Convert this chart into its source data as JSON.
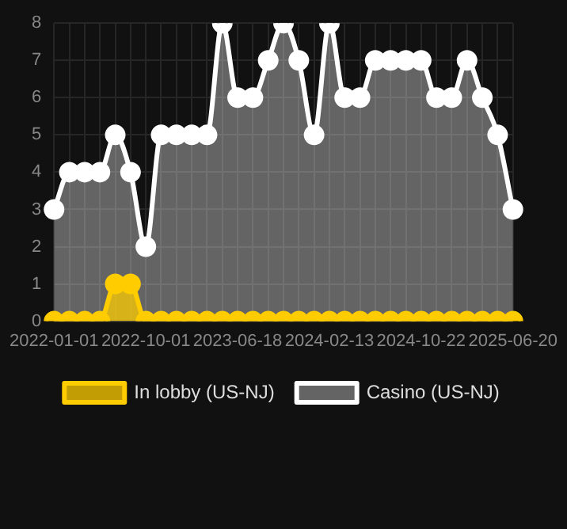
{
  "chart_data": {
    "type": "area",
    "categories": [
      "2022-01-01",
      null,
      null,
      null,
      null,
      null,
      "2022-10-01",
      null,
      null,
      null,
      null,
      null,
      "2023-06-18",
      null,
      null,
      null,
      null,
      null,
      "2024-02-13",
      null,
      null,
      null,
      null,
      null,
      "2024-10-22",
      null,
      null,
      null,
      null,
      null,
      "2025-06-20"
    ],
    "series": [
      {
        "name": "In lobby (US-NJ)",
        "color": "#ffcc00",
        "values": [
          0,
          0,
          0,
          0,
          1,
          1,
          0,
          0,
          0,
          0,
          0,
          0,
          0,
          0,
          0,
          0,
          0,
          0,
          0,
          0,
          0,
          0,
          0,
          0,
          0,
          0,
          0,
          0,
          0,
          0,
          0
        ]
      },
      {
        "name": "Casino (US-NJ)",
        "color": "#ffffff",
        "values": [
          3,
          4,
          4,
          4,
          5,
          4,
          2,
          5,
          5,
          5,
          5,
          8,
          6,
          6,
          7,
          8,
          7,
          5,
          8,
          6,
          6,
          7,
          7,
          7,
          7,
          6,
          6,
          7,
          6,
          5,
          3
        ]
      }
    ],
    "ylim": [
      0,
      8
    ],
    "yticks": [
      0,
      1,
      2,
      3,
      4,
      5,
      6,
      7,
      8
    ],
    "grid": true,
    "legend": "bottom",
    "marker": "circle",
    "line_style": "solid"
  }
}
